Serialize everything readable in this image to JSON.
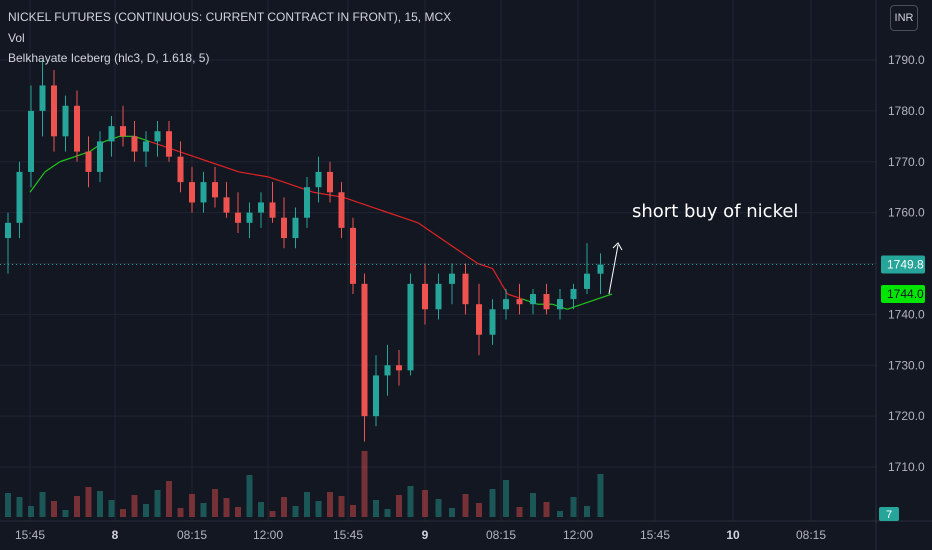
{
  "header": {
    "symbol_line": "NICKEL FUTURES (CONTINUOUS: CURRENT CONTRACT IN FRONT), 15, MCX",
    "volume_label": "Vol",
    "indicator_label": "Belkhayate Iceberg (hlc3, D, 1.618, 5)",
    "currency": "INR"
  },
  "annotation": {
    "text": "short buy of nickel"
  },
  "chart_data": {
    "type": "candlestick",
    "y_axis": {
      "ticks": [
        "1790.0",
        "1780.0",
        "1770.0",
        "1760.0",
        "1750.0",
        "1740.0",
        "1730.0",
        "1720.0",
        "1710.0"
      ],
      "tick_values": [
        1790,
        1780,
        1770,
        1760,
        1750,
        1740,
        1730,
        1720,
        1710
      ],
      "range": [
        1700,
        1800
      ]
    },
    "x_axis": {
      "labels": [
        {
          "text": "15:45",
          "bold": false
        },
        {
          "text": "8",
          "bold": true
        },
        {
          "text": "08:15",
          "bold": false
        },
        {
          "text": "12:00",
          "bold": false
        },
        {
          "text": "15:45",
          "bold": false
        },
        {
          "text": "9",
          "bold": true
        },
        {
          "text": "08:15",
          "bold": false
        },
        {
          "text": "12:00",
          "bold": false
        },
        {
          "text": "15:45",
          "bold": false
        },
        {
          "text": "10",
          "bold": true
        },
        {
          "text": "08:15",
          "bold": false
        }
      ]
    },
    "last_price": {
      "value": 1749.8,
      "label": "1749.8"
    },
    "indicator_value": {
      "value": 1744.0,
      "label": "1744.0"
    },
    "volume_badge": "7",
    "colors": {
      "up": "#26a69a",
      "down": "#ef5350",
      "line_up": "#22c61d",
      "line_down": "#e02424",
      "background": "#131722"
    },
    "candles": [
      [
        1755,
        1760,
        1748,
        1758
      ],
      [
        1758,
        1770,
        1755,
        1768
      ],
      [
        1768,
        1785,
        1765,
        1780
      ],
      [
        1780,
        1790,
        1775,
        1785
      ],
      [
        1785,
        1788,
        1772,
        1775
      ],
      [
        1775,
        1783,
        1772,
        1781
      ],
      [
        1781,
        1784,
        1770,
        1772
      ],
      [
        1772,
        1775,
        1765,
        1768
      ],
      [
        1768,
        1776,
        1766,
        1774
      ],
      [
        1774,
        1779,
        1771,
        1777
      ],
      [
        1777,
        1781,
        1773,
        1775
      ],
      [
        1775,
        1778,
        1770,
        1772
      ],
      [
        1772,
        1776,
        1769,
        1774
      ],
      [
        1774,
        1778,
        1771,
        1776
      ],
      [
        1776,
        1778,
        1770,
        1771
      ],
      [
        1771,
        1774,
        1764,
        1766
      ],
      [
        1766,
        1769,
        1760,
        1762
      ],
      [
        1762,
        1768,
        1760,
        1766
      ],
      [
        1766,
        1769,
        1761,
        1763
      ],
      [
        1763,
        1766,
        1759,
        1760
      ],
      [
        1760,
        1764,
        1756,
        1758
      ],
      [
        1758,
        1762,
        1755,
        1760
      ],
      [
        1760,
        1764,
        1757,
        1762
      ],
      [
        1762,
        1766,
        1758,
        1759
      ],
      [
        1759,
        1763,
        1753,
        1755
      ],
      [
        1755,
        1761,
        1753,
        1759
      ],
      [
        1759,
        1767,
        1757,
        1765
      ],
      [
        1765,
        1771,
        1762,
        1768
      ],
      [
        1768,
        1770,
        1762,
        1764
      ],
      [
        1764,
        1766,
        1755,
        1757
      ],
      [
        1757,
        1759,
        1744,
        1746
      ],
      [
        1746,
        1748,
        1715,
        1720
      ],
      [
        1720,
        1732,
        1718,
        1728
      ],
      [
        1728,
        1734,
        1724,
        1730
      ],
      [
        1730,
        1733,
        1726,
        1729
      ],
      [
        1729,
        1748,
        1728,
        1746
      ],
      [
        1746,
        1750,
        1738,
        1741
      ],
      [
        1741,
        1748,
        1739,
        1746
      ],
      [
        1746,
        1750,
        1742,
        1748
      ],
      [
        1748,
        1750,
        1740,
        1742
      ],
      [
        1742,
        1746,
        1732,
        1736
      ],
      [
        1736,
        1743,
        1734,
        1741
      ],
      [
        1741,
        1745,
        1739,
        1743
      ],
      [
        1743,
        1746,
        1740,
        1742
      ],
      [
        1742,
        1745,
        1740,
        1744
      ],
      [
        1744,
        1746,
        1740,
        1741
      ],
      [
        1741,
        1745,
        1739,
        1743
      ],
      [
        1743,
        1746,
        1741,
        1745
      ],
      [
        1745,
        1754,
        1744,
        1748
      ],
      [
        1748,
        1752,
        1744,
        1749.8
      ]
    ],
    "iceberg_line": [
      1764,
      1768,
      1770,
      1771,
      1772,
      1774,
      1775,
      1775,
      1774,
      1773,
      1772,
      1771,
      1770,
      1769,
      1768,
      1767.5,
      1767,
      1766,
      1765,
      1764,
      1763.5,
      1763,
      1762,
      1761,
      1760,
      1759,
      1758,
      1756,
      1754,
      1752,
      1750,
      1749,
      1744,
      1743,
      1742,
      1742,
      1741,
      1742,
      1743,
      1744
    ]
  }
}
